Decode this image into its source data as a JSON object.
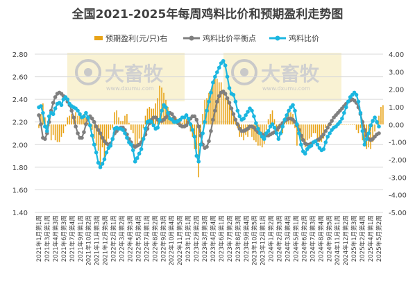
{
  "chart_data": {
    "type": "bar+line",
    "title": "全国2021-2025年每周鸡料比价和预期盈利走势图",
    "legend": {
      "placement": "top",
      "items": [
        {
          "name": "预期盈利(元/只)右",
          "color": "#E8A317",
          "marker": "bar"
        },
        {
          "name": "鸡料比价平衡点",
          "color": "#7F7F7F",
          "marker": "line-dot"
        },
        {
          "name": "鸡料比价",
          "color": "#1BB6E0",
          "marker": "line-dot"
        }
      ]
    },
    "left_axis": {
      "ylim": [
        1.4,
        2.8
      ],
      "ticks": [
        "1.40",
        "1.60",
        "1.80",
        "2.00",
        "2.20",
        "2.40",
        "2.60",
        "2.80"
      ]
    },
    "right_axis": {
      "ylim": [
        -5.0,
        4.0
      ],
      "ticks": [
        "4.00",
        "3.00",
        "2.00",
        "1.00",
        "0.00",
        "-1.00",
        "-2.00",
        "-3.00",
        "-4.00",
        "-5.00"
      ]
    },
    "x_labels": [
      "2021年1月第1周",
      "2021年3月第1周",
      "2021年4月第3周",
      "2021年6月第3周",
      "2021年7月第4周",
      "2021年9月第1周",
      "2021年10月第2周",
      "2021年11月第3周",
      "2021年12月第5周",
      "2022年2月第1周",
      "2022年3月第2周",
      "2022年4月第3周",
      "2022年5月第4周",
      "2022年7月第1周",
      "2022年8月第2周",
      "2022年9月第3周",
      "2022年10月第4周",
      "2022年11月第5周",
      "2023年1月第1周",
      "2023年2月第2周",
      "2023年3月第3周",
      "2023年4月第4周",
      "2023年6月第1周",
      "2023年7月第2周",
      "2023年8月第3周",
      "2023年9月第4周",
      "2023年10月第5周",
      "2023年12月第1周",
      "2024年1月第2周",
      "2024年2月第3周",
      "2024年3月第4周",
      "2024年5月第1周",
      "2024年6月第2周",
      "2024年7月第3周",
      "2024年8月第4周",
      "2024年9月第5周",
      "2024年11月第1周",
      "2024年12月第2周",
      "2025年1月第3周",
      "2025年2月第4周",
      "2025年4月第1周",
      "2025年5月第2周"
    ],
    "watermark": {
      "brand": "大畜牧",
      "url": "www.dxumu.com"
    },
    "series": [
      {
        "name": "鸡料比价",
        "axis": "left",
        "values": [
          2.33,
          2.34,
          2.28,
          2.16,
          2.12,
          2.25,
          2.28,
          2.27,
          2.32,
          2.36,
          2.37,
          2.35,
          2.4,
          2.42,
          2.4,
          2.36,
          2.34,
          2.33,
          2.32,
          2.3,
          2.27,
          2.24,
          2.25,
          2.28,
          2.24,
          2.17,
          2.08,
          2.0,
          1.93,
          1.84,
          1.8,
          1.83,
          1.87,
          1.93,
          1.97,
          1.99,
          2.05,
          2.14,
          2.15,
          2.14,
          2.14,
          2.13,
          2.1,
          2.06,
          2.02,
          2.0,
          1.95,
          1.85,
          1.88,
          1.92,
          1.96,
          2.05,
          2.14,
          2.2,
          2.21,
          2.2,
          2.17,
          2.14,
          2.15,
          2.22,
          2.3,
          2.35,
          2.33,
          2.28,
          2.23,
          2.22,
          2.2,
          2.2,
          2.21,
          2.22,
          2.24,
          2.24,
          2.26,
          2.23,
          2.18,
          2.13,
          2.07,
          1.9,
          1.85,
          2.0,
          2.1,
          2.2,
          2.3,
          2.38,
          2.46,
          2.55,
          2.6,
          2.64,
          2.68,
          2.72,
          2.74,
          2.7,
          2.6,
          2.5,
          2.45,
          2.44,
          2.38,
          2.3,
          2.25,
          2.22,
          2.23,
          2.26,
          2.29,
          2.32,
          2.3,
          2.25,
          2.19,
          2.14,
          2.1,
          2.07,
          2.05,
          2.1,
          2.12,
          2.16,
          2.18,
          2.15,
          2.1,
          2.05,
          2.1,
          2.16,
          2.22,
          2.26,
          2.3,
          2.33,
          2.35,
          2.3,
          2.18,
          2.1,
          2.0,
          1.94,
          1.92,
          1.96,
          1.98,
          1.99,
          2.02,
          2.03,
          2.0,
          1.97,
          1.95,
          1.96,
          2.02,
          2.07,
          2.1,
          2.13,
          2.15,
          2.16,
          2.18,
          2.2,
          2.23,
          2.28,
          2.33,
          2.38,
          2.42,
          2.44,
          2.46,
          2.44,
          2.38,
          2.28,
          2.12,
          2.0,
          2.05,
          2.1,
          2.17,
          2.21,
          2.24,
          2.2,
          2.16
        ],
        "color": "#1BB6E0"
      },
      {
        "name": "鸡料比价平衡点",
        "axis": "left",
        "values": [
          2.26,
          2.18,
          2.06,
          2.05,
          2.1,
          2.2,
          2.3,
          2.37,
          2.42,
          2.45,
          2.46,
          2.45,
          2.43,
          2.41,
          2.38,
          2.35,
          2.3,
          2.24,
          2.16,
          2.1,
          2.06,
          2.06,
          2.11,
          2.18,
          2.23,
          2.25,
          2.23,
          2.2,
          2.16,
          2.13,
          2.1,
          2.06,
          2.03,
          2.01,
          2.0,
          2.01,
          2.05,
          2.1,
          2.12,
          2.14,
          2.15,
          2.15,
          2.13,
          2.09,
          2.05,
          2.02,
          1.99,
          1.98,
          1.99,
          2.0,
          2.02,
          2.05,
          2.09,
          2.14,
          2.19,
          2.22,
          2.24,
          2.24,
          2.22,
          2.21,
          2.21,
          2.22,
          2.24,
          2.26,
          2.28,
          2.27,
          2.24,
          2.21,
          2.19,
          2.17,
          2.16,
          2.16,
          2.17,
          2.2,
          2.23,
          2.25,
          2.25,
          2.22,
          2.16,
          2.08,
          2.0,
          1.97,
          1.98,
          2.03,
          2.12,
          2.22,
          2.3,
          2.38,
          2.43,
          2.46,
          2.47,
          2.45,
          2.41,
          2.37,
          2.32,
          2.27,
          2.22,
          2.18,
          2.14,
          2.12,
          2.12,
          2.13,
          2.14,
          2.16,
          2.16,
          2.15,
          2.13,
          2.11,
          2.1,
          2.09,
          2.08,
          2.08,
          2.08,
          2.09,
          2.1,
          2.11,
          2.13,
          2.15,
          2.17,
          2.19,
          2.21,
          2.22,
          2.23,
          2.23,
          2.22,
          2.2,
          2.17,
          2.13,
          2.08,
          2.04,
          2.01,
          2.0,
          2.0,
          2.01,
          2.02,
          2.03,
          2.04,
          2.05,
          2.07,
          2.09,
          2.12,
          2.15,
          2.18,
          2.21,
          2.24,
          2.26,
          2.28,
          2.3,
          2.32,
          2.34,
          2.36,
          2.38,
          2.39,
          2.4,
          2.39,
          2.37,
          2.33,
          2.27,
          2.2,
          2.13,
          2.08,
          2.05,
          2.04,
          2.05,
          2.07,
          2.09,
          2.1
        ],
        "color": "#7F7F7F"
      },
      {
        "name": "预期盈利(元/只)右",
        "axis": "right",
        "values": [
          -0.2,
          0.6,
          1.2,
          0.4,
          -0.4,
          -0.1,
          -0.9,
          -0.6,
          -0.9,
          -1.0,
          -1.0,
          -0.7,
          -0.5,
          -0.1,
          0.4,
          0.5,
          0.6,
          0.4,
          0.7,
          0.5,
          0.7,
          0.5,
          0.6,
          0.4,
          0.1,
          -0.2,
          -0.3,
          -0.8,
          -1.2,
          -1.5,
          -2.5,
          -1.3,
          -1.9,
          -1.0,
          -0.8,
          -0.3,
          -0.2,
          0.7,
          0.8,
          0.4,
          0.2,
          0.2,
          0.5,
          0.6,
          0.1,
          -0.3,
          -0.5,
          -1.4,
          -1.3,
          -0.8,
          -1.0,
          -0.2,
          0.5,
          0.9,
          1.0,
          0.9,
          0.9,
          1.2,
          1.5,
          2.2,
          2.1,
          1.8,
          1.4,
          1.0,
          0.5,
          0.4,
          0.5,
          0.4,
          0.3,
          0.3,
          0.1,
          0.4,
          0.3,
          0.4,
          -0.4,
          -0.7,
          -1.4,
          -1.4,
          -3.0,
          -0.7,
          0.6,
          1.4,
          1.5,
          1.8,
          2.0,
          2.4,
          2.6,
          2.6,
          2.4,
          2.4,
          1.9,
          1.5,
          1.5,
          1.3,
          0.9,
          0.5,
          0.2,
          -0.2,
          -0.7,
          -0.7,
          -0.9,
          -0.6,
          -0.7,
          -0.3,
          -0.7,
          -0.9,
          -1.0,
          -1.2,
          -1.2,
          -1.3,
          -1.1,
          -0.3,
          0.3,
          0.6,
          0.8,
          0.3,
          -0.2,
          -0.4,
          -0.2,
          -0.5,
          0.4,
          0.5,
          0.7,
          0.7,
          0.6,
          -0.2,
          -1.2,
          -0.6,
          -0.9,
          -0.8,
          -1.3,
          -0.9,
          -0.8,
          -0.7,
          -0.5,
          -0.5,
          -0.8,
          -1.0,
          -1.0,
          -0.8,
          -0.2,
          -0.1,
          -0.1,
          0.0,
          0.0,
          -0.1,
          0.0,
          0.0,
          0.0,
          0.0,
          0.0,
          0.0,
          0.0,
          0.0,
          0.0,
          -0.3,
          -0.5,
          -0.2,
          -0.9,
          -1.1,
          -1.4,
          -1.3,
          -1.4,
          -1.0,
          -0.4,
          0.1,
          0.5,
          1.0,
          1.1
        ]
      }
    ]
  }
}
